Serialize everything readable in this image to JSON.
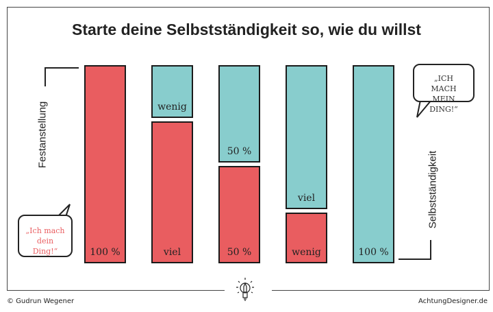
{
  "title": "Starte deine Selbstständigkeit so, wie du willst",
  "colors": {
    "festanstellung": "#e95d60",
    "selbststaendigkeit": "#88cdcd"
  },
  "chart_data": {
    "type": "bar",
    "stacked": true,
    "title": "Starte deine Selbstständigkeit so, wie du willst",
    "axis_left_label": "Festanstellung",
    "axis_right_label": "Selbstständigkeit",
    "bars": [
      {
        "festanstellung": 100,
        "selbststaendigkeit": 0,
        "festanstellung_label": "100 %",
        "selbststaendigkeit_label": ""
      },
      {
        "festanstellung": 73,
        "selbststaendigkeit": 27,
        "festanstellung_label": "viel",
        "selbststaendigkeit_label": "wenig"
      },
      {
        "festanstellung": 50,
        "selbststaendigkeit": 50,
        "festanstellung_label": "50 %",
        "selbststaendigkeit_label": "50 %"
      },
      {
        "festanstellung": 26,
        "selbststaendigkeit": 74,
        "festanstellung_label": "wenig",
        "selbststaendigkeit_label": "viel"
      },
      {
        "festanstellung": 0,
        "selbststaendigkeit": 100,
        "festanstellung_label": "",
        "selbststaendigkeit_label": "100 %"
      }
    ]
  },
  "bubbles": {
    "left": "„Ich mach dein Ding!“",
    "right": "„ICH MACH MEIN DING!“"
  },
  "footer": {
    "copyright": "© Gudrun Wegener",
    "site": "AchtungDesigner.de"
  },
  "icons": {
    "logo": "lightbulb-pencil-icon"
  }
}
